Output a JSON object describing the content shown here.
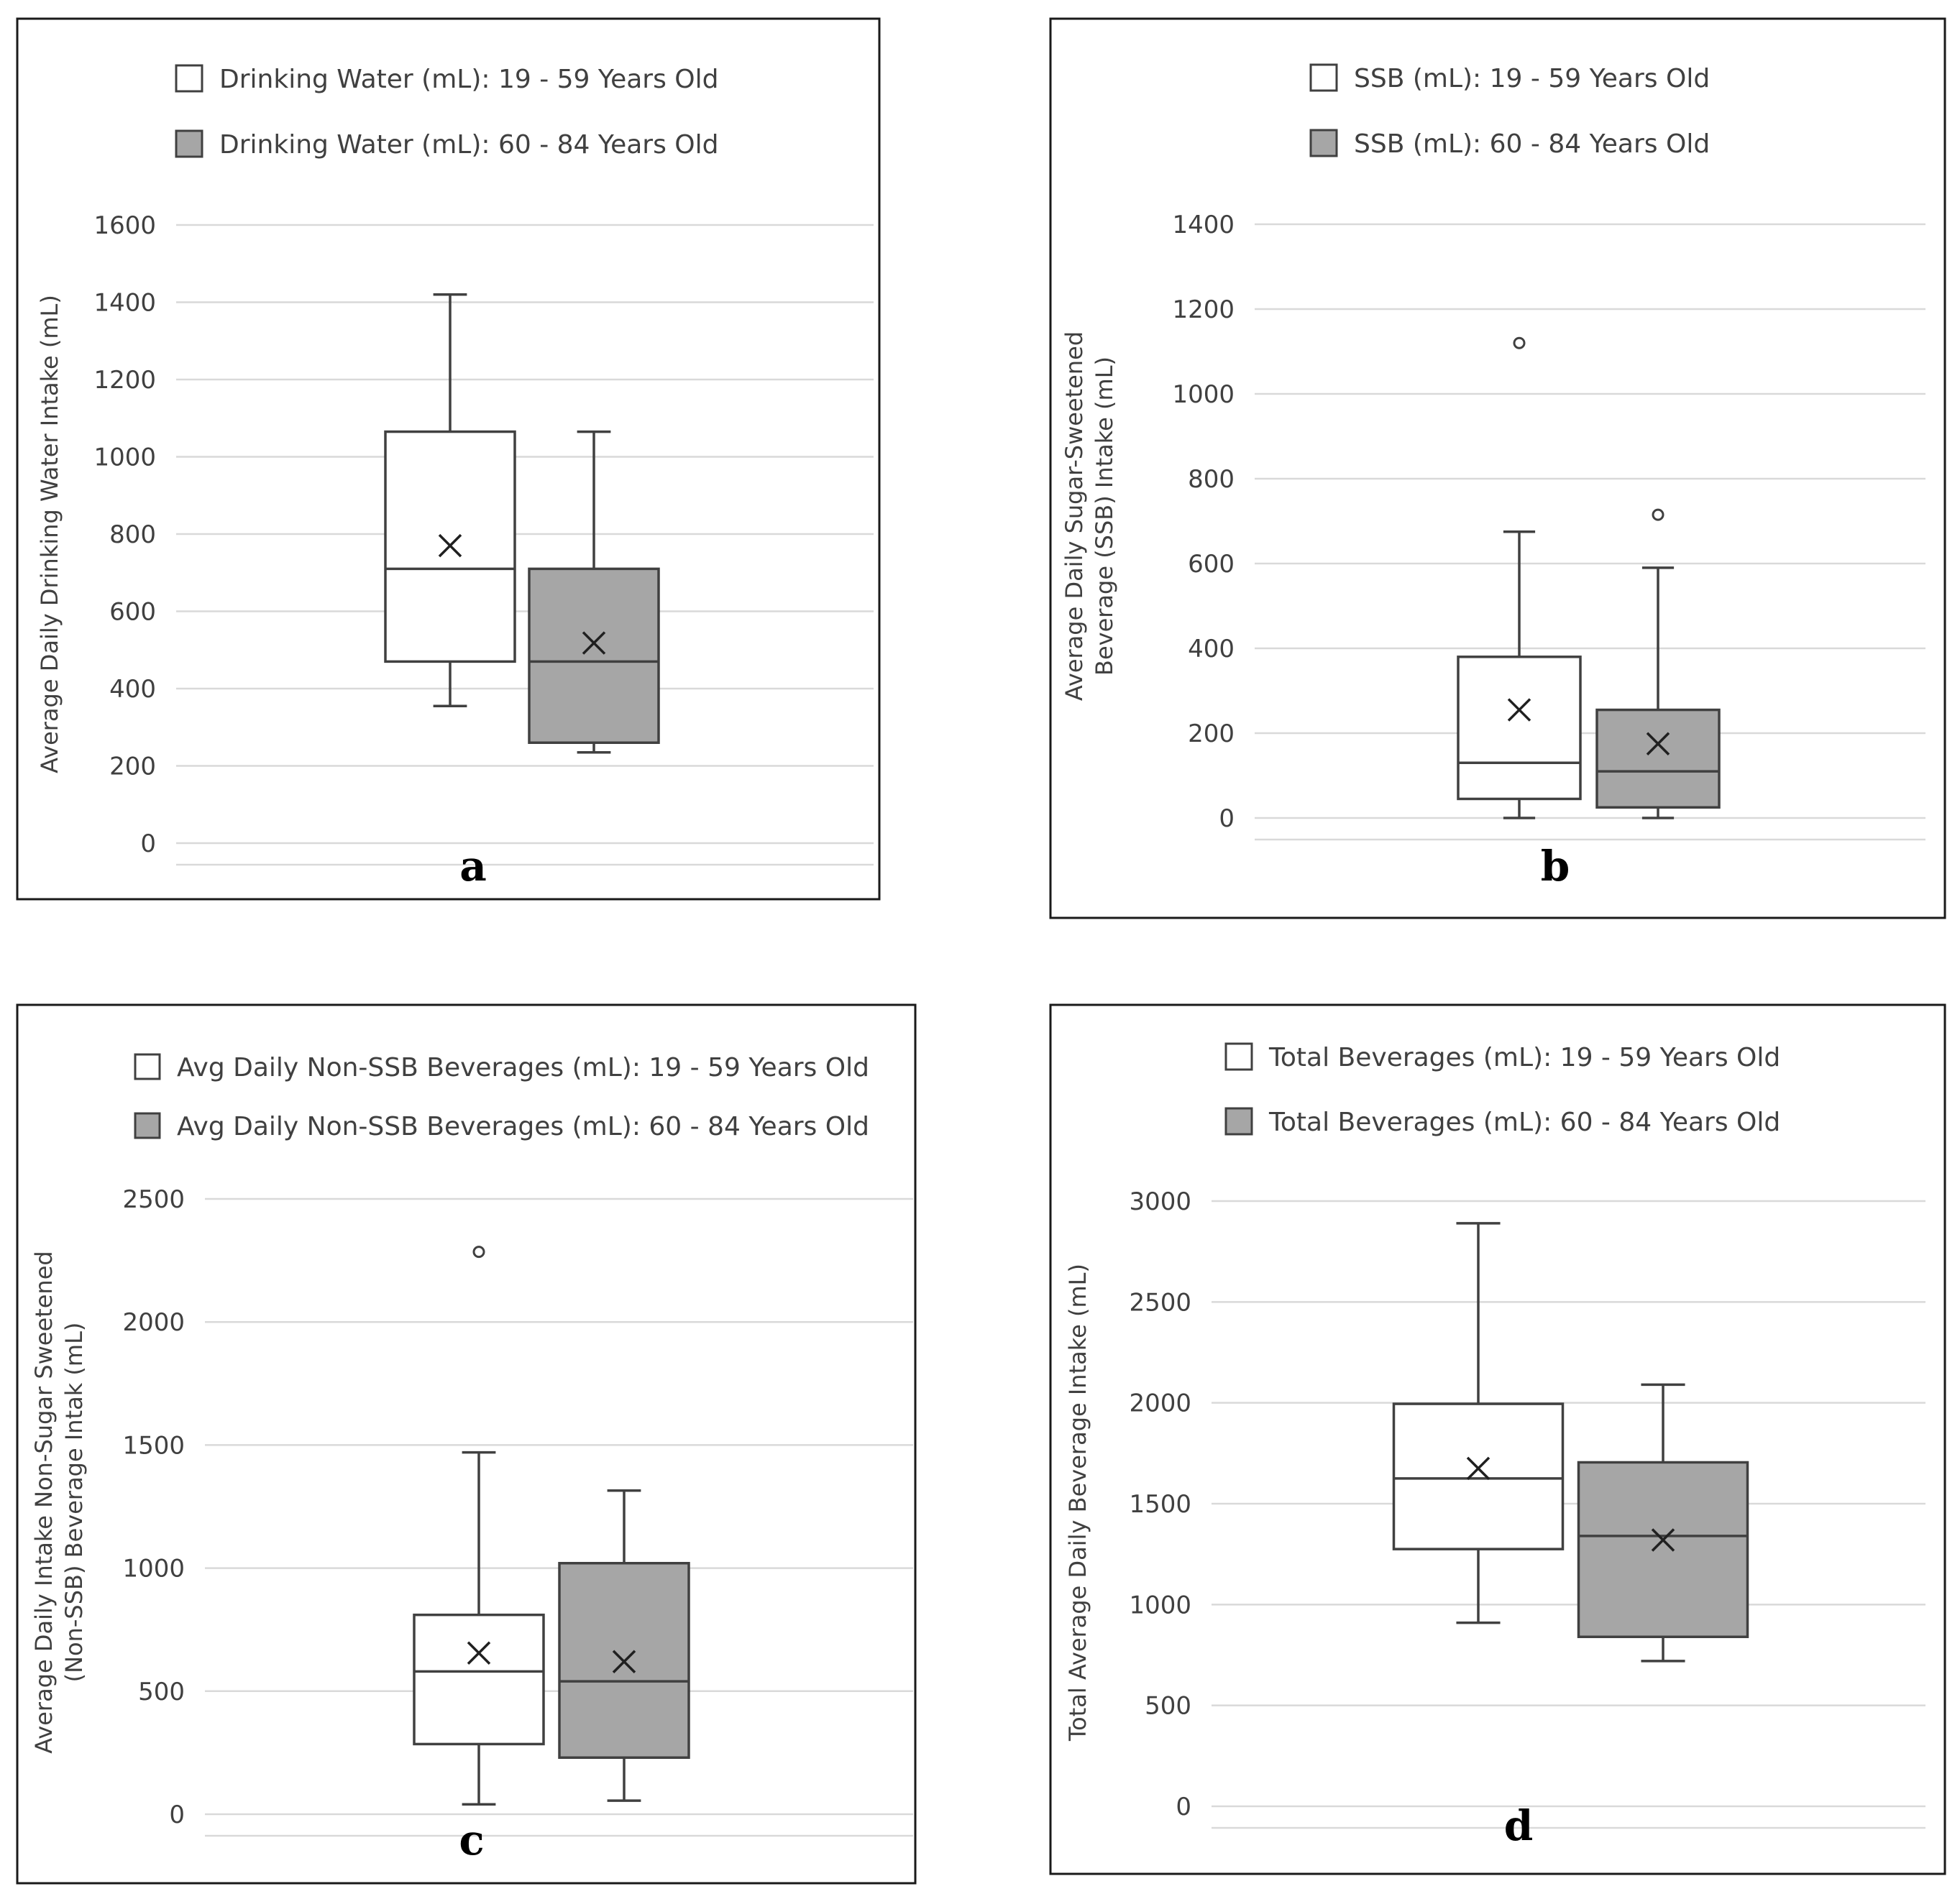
{
  "colors": {
    "group1_fill": "#ffffff",
    "group2_fill": "#a6a6a6",
    "border": "#1a1a1a",
    "grid": "#d9d9d9"
  },
  "chart_data": [
    {
      "type": "box",
      "panel": "a",
      "title": "",
      "ylabel": "Average Daily Drinking Water Intake (mL)",
      "ylim": [
        0,
        1600
      ],
      "yticks": [
        "0",
        "200",
        "400",
        "600",
        "800",
        "1000",
        "1200",
        "1400",
        "1600"
      ],
      "legend": [
        "Drinking Water (mL): 19 - 59 Years Old",
        "Drinking Water (mL): 60 - 84 Years Old"
      ],
      "series": [
        {
          "name": "Drinking Water (mL): 19 - 59 Years Old",
          "min": 355,
          "q1": 470,
          "median": 710,
          "q3": 1065,
          "max": 1420,
          "mean": 770,
          "outliers": []
        },
        {
          "name": "Drinking Water (mL): 60 - 84 Years Old",
          "min": 235,
          "q1": 260,
          "median": 470,
          "q3": 710,
          "max": 1065,
          "mean": 518,
          "outliers": []
        }
      ]
    },
    {
      "type": "box",
      "panel": "b",
      "title": "",
      "ylabel": "Average Daily Sugar-Sweetened\nBeverage  (SSB) Intake (mL)",
      "ylim": [
        0,
        1400
      ],
      "yticks": [
        "0",
        "200",
        "400",
        "600",
        "800",
        "1000",
        "1200",
        "1400"
      ],
      "legend": [
        "SSB (mL): 19 - 59 Years Old",
        "SSB (mL): 60 - 84 Years Old"
      ],
      "series": [
        {
          "name": "SSB (mL): 19 - 59 Years Old",
          "min": 0,
          "q1": 45,
          "median": 130,
          "q3": 380,
          "max": 675,
          "mean": 255,
          "outliers": [
            1120
          ]
        },
        {
          "name": "SSB (mL): 60 - 84 Years Old",
          "min": 0,
          "q1": 25,
          "median": 110,
          "q3": 255,
          "max": 590,
          "mean": 175,
          "outliers": [
            715
          ]
        }
      ]
    },
    {
      "type": "box",
      "panel": "c",
      "title": "",
      "ylabel": "Average Daily Intake Non-Sugar Sweetened\n(Non-SSB) Beverage Intak (mL)",
      "ylim": [
        0,
        2500
      ],
      "yticks": [
        "0",
        "500",
        "1000",
        "1500",
        "2000",
        "2500"
      ],
      "legend": [
        "Avg Daily Non-SSB Beverages (mL): 19 - 59 Years Old",
        "Avg Daily Non-SSB Beverages (mL): 60 - 84 Years Old"
      ],
      "series": [
        {
          "name": "Avg Daily Non-SSB Beverages (mL): 19 - 59 Years Old",
          "min": 40,
          "q1": 285,
          "median": 580,
          "q3": 810,
          "max": 1470,
          "mean": 655,
          "outliers": [
            2285
          ]
        },
        {
          "name": "Avg Daily Non-SSB Beverages (mL): 60 - 84 Years Old",
          "min": 55,
          "q1": 230,
          "median": 540,
          "q3": 1020,
          "max": 1315,
          "mean": 620,
          "outliers": []
        }
      ]
    },
    {
      "type": "box",
      "panel": "d",
      "title": "",
      "ylabel": "Total Average Daily Beverage Intake (mL)",
      "ylim": [
        0,
        3000
      ],
      "yticks": [
        "0",
        "500",
        "1000",
        "1500",
        "2000",
        "2500",
        "3000"
      ],
      "legend": [
        "Total Beverages (mL): 19 - 59 Years Old",
        "Total Beverages (mL): 60 - 84 Years Old"
      ],
      "series": [
        {
          "name": "Total Beverages (mL): 19 - 59 Years Old",
          "min": 910,
          "q1": 1275,
          "median": 1625,
          "q3": 1995,
          "max": 2890,
          "mean": 1675,
          "outliers": []
        },
        {
          "name": "Total Beverages (mL): 60 - 84 Years Old",
          "min": 720,
          "q1": 840,
          "median": 1340,
          "q3": 1705,
          "max": 2090,
          "mean": 1320,
          "outliers": []
        }
      ]
    }
  ]
}
